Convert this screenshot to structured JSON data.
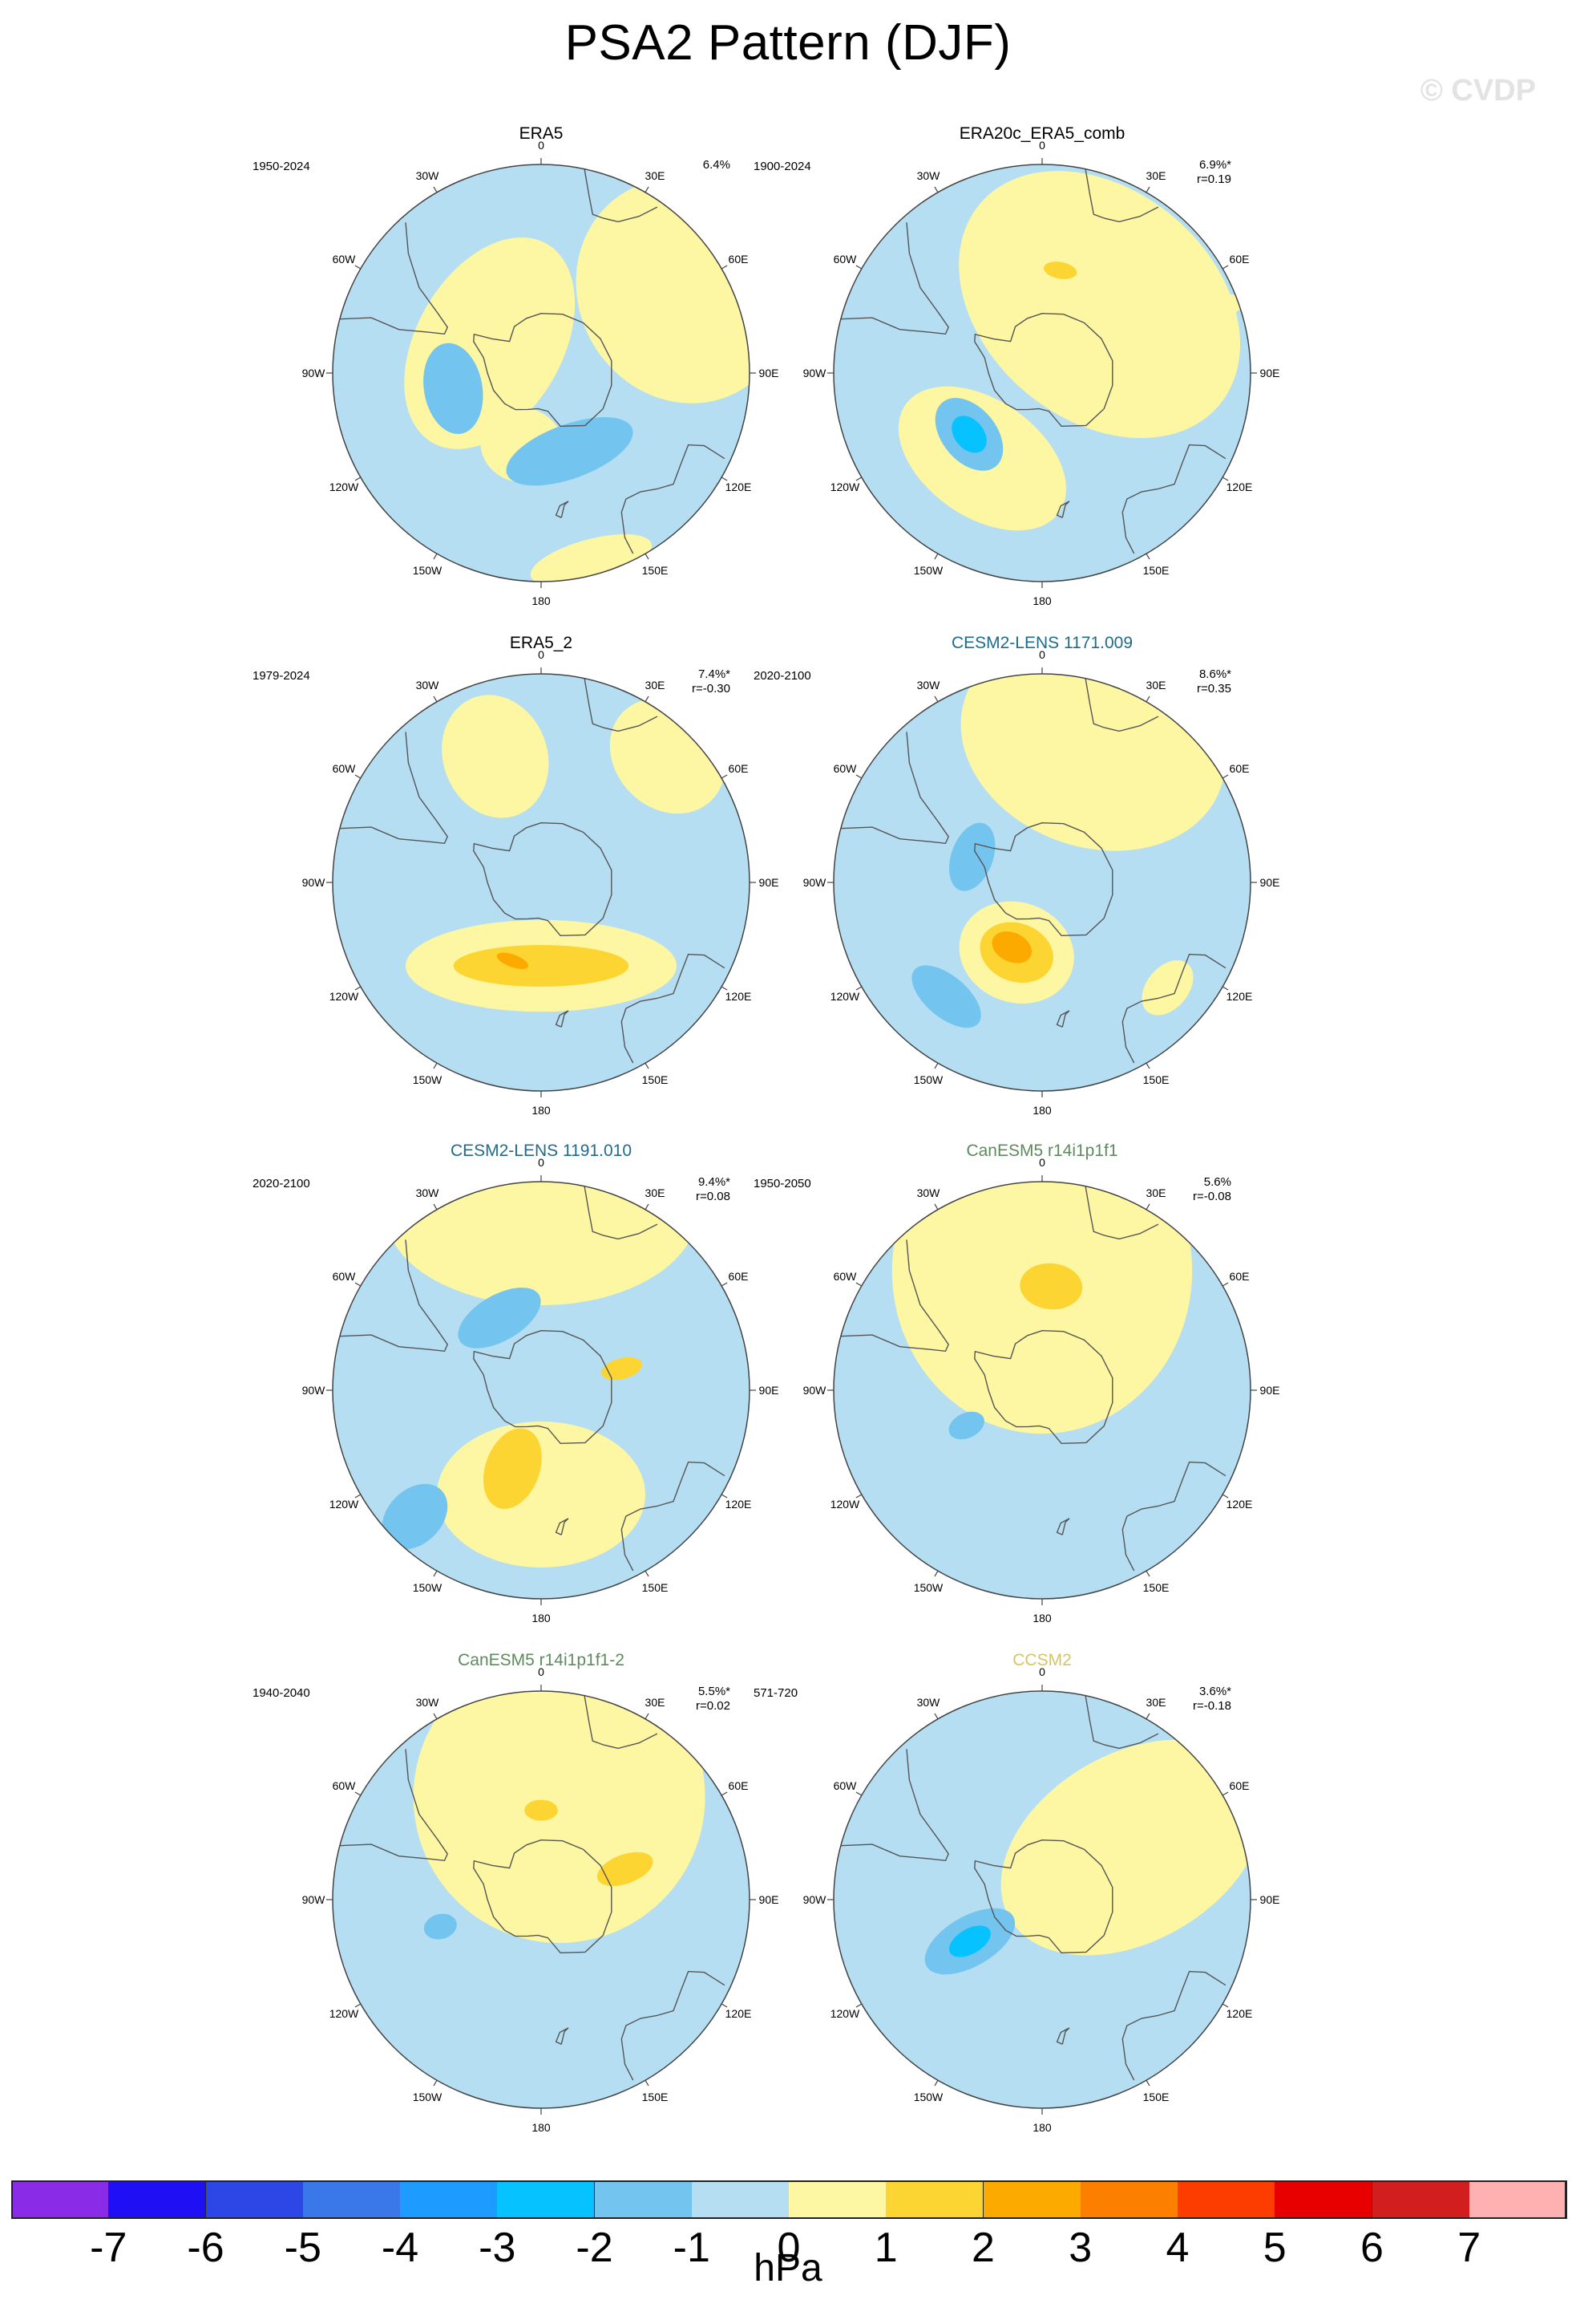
{
  "title": "PSA2 Pattern (DJF)",
  "watermark": "© CVDP",
  "longitude_labels": [
    "0",
    "30E",
    "60E",
    "90E",
    "120E",
    "150E",
    "180",
    "150W",
    "120W",
    "90W",
    "60W",
    "30W"
  ],
  "colors": {
    "neg1": "#b5def2",
    "neg2": "#73c5f0",
    "neg3": "#06c2ff",
    "pos1": "#fdf6a3",
    "pos2": "#fdd533",
    "pos3": "#fdaa00",
    "coast": "#555555",
    "ring": "#444444"
  },
  "panels": [
    {
      "id": "era5",
      "title": "ERA5",
      "title_color": "#000000",
      "years": "1950-2024",
      "pct": "6.4%",
      "r": "",
      "blobs": [
        {
          "lon": 300,
          "lat": -70,
          "rx": 0.55,
          "ry": 0.35,
          "level": "pos1"
        },
        {
          "lon": 60,
          "lat": -35,
          "rx": 0.55,
          "ry": 0.5,
          "level": "pos1"
        },
        {
          "lon": 260,
          "lat": -60,
          "rx": 0.22,
          "ry": 0.14,
          "level": "neg2"
        },
        {
          "lon": 195,
          "lat": -65,
          "rx": 0.2,
          "ry": 0.18,
          "level": "pos1"
        },
        {
          "lon": 160,
          "lat": -62,
          "rx": 0.32,
          "ry": 0.13,
          "level": "neg2"
        },
        {
          "lon": 165,
          "lat": -25,
          "rx": 0.3,
          "ry": 0.1,
          "level": "pos1"
        }
      ]
    },
    {
      "id": "era20c",
      "title": "ERA20c_ERA5_comb",
      "title_color": "#000000",
      "years": "1900-2024",
      "pct": "6.9%*",
      "r": "r=0.19",
      "blobs": [
        {
          "lon": 40,
          "lat": -60,
          "rx": 0.75,
          "ry": 0.55,
          "level": "pos1"
        },
        {
          "lon": 215,
          "lat": -55,
          "rx": 0.45,
          "ry": 0.28,
          "level": "pos1"
        },
        {
          "lon": 230,
          "lat": -58,
          "rx": 0.2,
          "ry": 0.13,
          "level": "neg2"
        },
        {
          "lon": 230,
          "lat": -58,
          "rx": 0.1,
          "ry": 0.07,
          "level": "neg3"
        },
        {
          "lon": 10,
          "lat": -55,
          "rx": 0.08,
          "ry": 0.04,
          "level": "pos2"
        },
        {
          "lon": 70,
          "lat": -25,
          "rx": 0.05,
          "ry": 0.1,
          "level": "pos1"
        }
      ]
    },
    {
      "id": "era5_2",
      "title": "ERA5_2",
      "title_color": "#000000",
      "years": "1979-2024",
      "pct": "7.4%*",
      "r": "r=-0.30",
      "blobs": [
        {
          "lon": 340,
          "lat": -45,
          "rx": 0.25,
          "ry": 0.3,
          "level": "pos1"
        },
        {
          "lon": 180,
          "lat": -62,
          "rx": 0.65,
          "ry": 0.22,
          "level": "pos1"
        },
        {
          "lon": 180,
          "lat": -62,
          "rx": 0.42,
          "ry": 0.1,
          "level": "pos2"
        },
        {
          "lon": 200,
          "lat": -62,
          "rx": 0.08,
          "ry": 0.03,
          "level": "pos3"
        },
        {
          "lon": 45,
          "lat": -30,
          "rx": 0.3,
          "ry": 0.25,
          "level": "pos1"
        }
      ]
    },
    {
      "id": "cesm2_009",
      "title": "CESM2-LENS 1171.009",
      "title_color": "#1f6c8a",
      "years": "2020-2100",
      "pct": "8.6%*",
      "r": "r=0.35",
      "blobs": [
        {
          "lon": 20,
          "lat": -40,
          "rx": 0.65,
          "ry": 0.5,
          "level": "pos1"
        },
        {
          "lon": 200,
          "lat": -65,
          "rx": 0.28,
          "ry": 0.24,
          "level": "pos1"
        },
        {
          "lon": 200,
          "lat": -65,
          "rx": 0.18,
          "ry": 0.14,
          "level": "pos2"
        },
        {
          "lon": 205,
          "lat": -66,
          "rx": 0.1,
          "ry": 0.07,
          "level": "pos3"
        },
        {
          "lon": 290,
          "lat": -65,
          "rx": 0.17,
          "ry": 0.1,
          "level": "neg2"
        },
        {
          "lon": 220,
          "lat": -40,
          "rx": 0.2,
          "ry": 0.1,
          "level": "neg2"
        },
        {
          "lon": 130,
          "lat": -35,
          "rx": 0.15,
          "ry": 0.1,
          "level": "pos1"
        }
      ]
    },
    {
      "id": "cesm2_010",
      "title": "CESM2-LENS 1191.010",
      "title_color": "#1f6c8a",
      "years": "2020-2100",
      "pct": "9.4%*",
      "r": "r=0.08",
      "blobs": [
        {
          "lon": 0,
          "lat": -30,
          "rx": 0.75,
          "ry": 0.45,
          "level": "pos1"
        },
        {
          "lon": 180,
          "lat": -55,
          "rx": 0.5,
          "ry": 0.35,
          "level": "pos1"
        },
        {
          "lon": 200,
          "lat": -62,
          "rx": 0.13,
          "ry": 0.2,
          "level": "pos2"
        },
        {
          "lon": 330,
          "lat": -62,
          "rx": 0.22,
          "ry": 0.11,
          "level": "neg2"
        },
        {
          "lon": 75,
          "lat": -62,
          "rx": 0.05,
          "ry": 0.1,
          "level": "pos2"
        },
        {
          "lon": 225,
          "lat": -30,
          "rx": 0.13,
          "ry": 0.18,
          "level": "neg2"
        }
      ]
    },
    {
      "id": "canesm5_1",
      "title": "CanESM5 r14i1p1f1",
      "title_color": "#5e8a5e",
      "years": "1950-2050",
      "pct": "5.6%",
      "r": "r=-0.08",
      "blobs": [
        {
          "lon": 0,
          "lat": -50,
          "rx": 0.72,
          "ry": 0.78,
          "level": "pos1"
        },
        {
          "lon": 5,
          "lat": -55,
          "rx": 0.15,
          "ry": 0.11,
          "level": "pos2"
        },
        {
          "lon": 245,
          "lat": -62,
          "rx": 0.06,
          "ry": 0.09,
          "level": "neg2"
        }
      ]
    },
    {
      "id": "canesm5_2",
      "title": "CanESM5 r14i1p1f1-2",
      "title_color": "#5e8a5e",
      "years": "1940-2040",
      "pct": "5.5%*",
      "r": "r=0.02",
      "blobs": [
        {
          "lon": 10,
          "lat": -55,
          "rx": 0.7,
          "ry": 0.7,
          "level": "pos1"
        },
        {
          "lon": 0,
          "lat": -60,
          "rx": 0.08,
          "ry": 0.05,
          "level": "pos2"
        },
        {
          "lon": 70,
          "lat": -60,
          "rx": 0.07,
          "ry": 0.14,
          "level": "pos2"
        },
        {
          "lon": 255,
          "lat": -55,
          "rx": 0.06,
          "ry": 0.08,
          "level": "neg2"
        }
      ]
    },
    {
      "id": "ccsm2",
      "title": "CCSM2",
      "title_color": "#d4c46a",
      "years": "571-720",
      "pct": "3.6%*",
      "r": "r=-0.18",
      "blobs": [
        {
          "lon": 60,
          "lat": -55,
          "rx": 0.45,
          "ry": 0.68,
          "level": "pos1"
        },
        {
          "lon": 240,
          "lat": -62,
          "rx": 0.12,
          "ry": 0.24,
          "level": "neg2"
        },
        {
          "lon": 240,
          "lat": -62,
          "rx": 0.06,
          "ry": 0.11,
          "level": "neg3"
        }
      ]
    }
  ],
  "colorbar": {
    "labels": [
      "-7",
      "-6",
      "-5",
      "-4",
      "-3",
      "-2",
      "-1",
      "0",
      "1",
      "2",
      "3",
      "4",
      "5",
      "6",
      "7"
    ],
    "colors": [
      "#8a2be8",
      "#1e0ff5",
      "#2d46e6",
      "#3a78ea",
      "#1e9bff",
      "#06c2ff",
      "#73c5f0",
      "#b5def2",
      "#fdf6a3",
      "#fdd533",
      "#fdaa00",
      "#fd7f00",
      "#fd3c00",
      "#e80000",
      "#d21e1e",
      "#ffb1b1"
    ],
    "units": "hPa"
  }
}
